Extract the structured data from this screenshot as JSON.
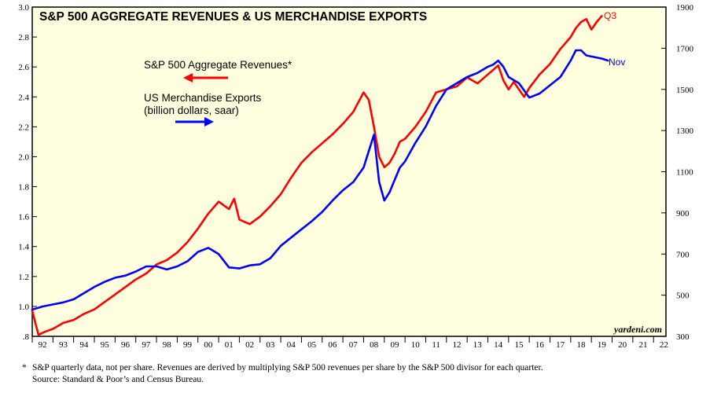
{
  "chart_data": {
    "type": "line",
    "title": "S&P 500 AGGREGATE REVENUES & US MERCHANDISE EXPORTS",
    "watermark": "yardeni.com",
    "x_tick_labels": [
      "92",
      "93",
      "94",
      "95",
      "96",
      "97",
      "98",
      "99",
      "00",
      "01",
      "02",
      "03",
      "04",
      "05",
      "06",
      "07",
      "08",
      "09",
      "10",
      "11",
      "12",
      "13",
      "14",
      "15",
      "16",
      "17",
      "18",
      "19",
      "20",
      "21",
      "22"
    ],
    "xlim": [
      1992.0,
      2022.6
    ],
    "left_axis": {
      "ylim": [
        0.8,
        3.0
      ],
      "ticks": [
        0.8,
        1.0,
        1.2,
        1.4,
        1.6,
        1.8,
        2.0,
        2.2,
        2.4,
        2.6,
        2.8,
        3.0
      ],
      "tick_labels": [
        ".8",
        "1.0",
        "1.2",
        "1.4",
        "1.6",
        "1.8",
        "2.0",
        "2.2",
        "2.4",
        "2.6",
        "2.8",
        "3.0"
      ]
    },
    "right_axis": {
      "ylim": [
        300,
        1900
      ],
      "ticks": [
        300,
        500,
        700,
        900,
        1100,
        1300,
        1500,
        1700,
        1900
      ],
      "tick_labels": [
        "300",
        "500",
        "700",
        "900",
        "1100",
        "1300",
        "1500",
        "1700",
        "1900"
      ]
    },
    "grid": false,
    "series": [
      {
        "name": "S&P 500 Aggregate Revenues*",
        "axis": "left",
        "color": "#ff0000",
        "end_label": "Q3",
        "legend_note": "",
        "x": [
          1992.0,
          1992.3,
          1992.6,
          1993.0,
          1993.5,
          1994.0,
          1994.5,
          1995.0,
          1995.5,
          1996.0,
          1996.5,
          1997.0,
          1997.5,
          1998.0,
          1998.5,
          1999.0,
          1999.5,
          2000.0,
          2000.5,
          2001.0,
          2001.5,
          2001.75,
          2002.0,
          2002.5,
          2003.0,
          2003.5,
          2004.0,
          2004.5,
          2005.0,
          2005.5,
          2006.0,
          2006.5,
          2007.0,
          2007.5,
          2008.0,
          2008.25,
          2008.5,
          2008.75,
          2009.0,
          2009.25,
          2009.5,
          2009.75,
          2010.0,
          2010.5,
          2011.0,
          2011.5,
          2012.0,
          2012.5,
          2013.0,
          2013.5,
          2014.0,
          2014.25,
          2014.5,
          2014.75,
          2015.0,
          2015.25,
          2015.5,
          2015.75,
          2016.0,
          2016.5,
          2017.0,
          2017.5,
          2018.0,
          2018.25,
          2018.5,
          2018.75,
          2019.0,
          2019.25,
          2019.5
        ],
        "values": [
          0.97,
          0.81,
          0.83,
          0.85,
          0.89,
          0.91,
          0.95,
          0.98,
          1.03,
          1.08,
          1.13,
          1.18,
          1.22,
          1.28,
          1.31,
          1.36,
          1.43,
          1.52,
          1.62,
          1.7,
          1.65,
          1.72,
          1.58,
          1.55,
          1.6,
          1.67,
          1.75,
          1.86,
          1.96,
          2.03,
          2.09,
          2.15,
          2.22,
          2.3,
          2.43,
          2.38,
          2.2,
          2.0,
          1.93,
          1.96,
          2.02,
          2.1,
          2.12,
          2.2,
          2.3,
          2.43,
          2.45,
          2.47,
          2.53,
          2.49,
          2.55,
          2.58,
          2.61,
          2.51,
          2.45,
          2.5,
          2.45,
          2.4,
          2.46,
          2.55,
          2.62,
          2.72,
          2.8,
          2.86,
          2.9,
          2.92,
          2.85,
          2.9,
          2.94
        ]
      },
      {
        "name": "US Merchandise Exports",
        "name_line2": "(billion dollars, saar)",
        "axis": "right",
        "color": "#0000ff",
        "end_label": "Nov",
        "x": [
          1992.0,
          1992.5,
          1993.0,
          1993.5,
          1994.0,
          1994.5,
          1995.0,
          1995.5,
          1996.0,
          1996.5,
          1997.0,
          1997.5,
          1998.0,
          1998.5,
          1999.0,
          1999.5,
          2000.0,
          2000.5,
          2001.0,
          2001.5,
          2002.0,
          2002.5,
          2003.0,
          2003.5,
          2004.0,
          2004.5,
          2005.0,
          2005.5,
          2006.0,
          2006.5,
          2007.0,
          2007.5,
          2008.0,
          2008.25,
          2008.5,
          2008.75,
          2009.0,
          2009.25,
          2009.5,
          2009.75,
          2010.0,
          2010.5,
          2011.0,
          2011.5,
          2012.0,
          2012.5,
          2013.0,
          2013.5,
          2014.0,
          2014.25,
          2014.5,
          2014.75,
          2015.0,
          2015.5,
          2016.0,
          2016.5,
          2017.0,
          2017.5,
          2018.0,
          2018.25,
          2018.5,
          2018.75,
          2019.0,
          2019.5,
          2019.8
        ],
        "values": [
          430,
          445,
          455,
          465,
          480,
          510,
          540,
          565,
          585,
          595,
          615,
          640,
          640,
          625,
          640,
          665,
          710,
          730,
          700,
          635,
          630,
          645,
          650,
          680,
          740,
          780,
          820,
          860,
          905,
          960,
          1010,
          1050,
          1120,
          1200,
          1280,
          1050,
          960,
          1000,
          1060,
          1120,
          1150,
          1240,
          1320,
          1420,
          1500,
          1530,
          1560,
          1580,
          1610,
          1620,
          1640,
          1610,
          1560,
          1530,
          1460,
          1480,
          1520,
          1560,
          1640,
          1690,
          1690,
          1665,
          1660,
          1650,
          1640
        ]
      }
    ],
    "legend": {
      "revenues_line1": "S&P 500 Aggregate Revenues*",
      "exports_line1": "US Merchandise Exports",
      "exports_line2": "(billion dollars, saar)"
    }
  },
  "footnotes": {
    "star": "*",
    "line1": "S&P quarterly data, not per share. Revenues are derived by multiplying S&P 500 revenues per share by the S&P 500 divisor for each quarter.",
    "line2": "Source: Standard & Poor’s and Census Bureau."
  }
}
